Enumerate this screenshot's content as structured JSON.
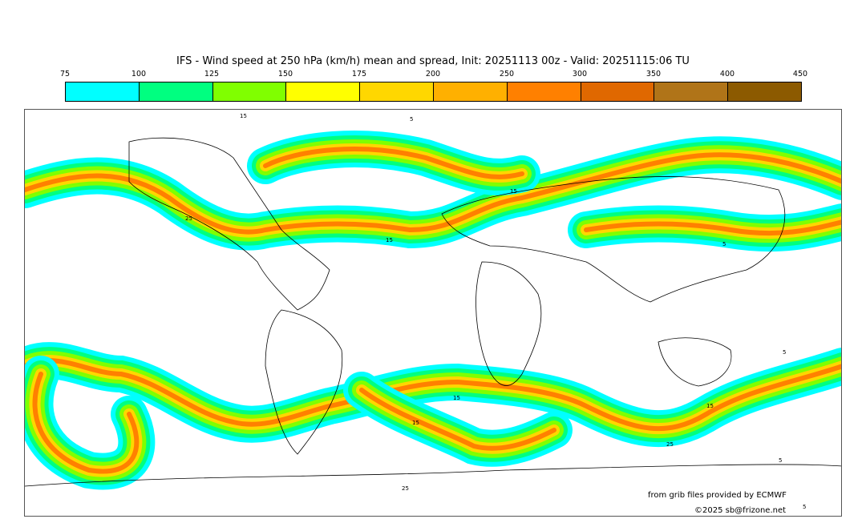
{
  "title": "IFS - Wind speed at 250 hPa (km/h) mean and spread, Init: 20251113 00z - Valid: 20251115:06 TU",
  "legend": {
    "ticks": [
      "75",
      "100",
      "125",
      "150",
      "175",
      "200",
      "250",
      "300",
      "350",
      "400",
      "450"
    ],
    "colors": [
      "#00ffff",
      "#00ff80",
      "#80ff00",
      "#ffff00",
      "#ffd700",
      "#ffb000",
      "#ff8000",
      "#e06800",
      "#b07418",
      "#8c5a00"
    ]
  },
  "map": {
    "contour_labels": [
      "15",
      "5",
      "25",
      "15",
      "15",
      "5",
      "25",
      "15",
      "5",
      "15",
      "5",
      "25",
      "15",
      "5"
    ]
  },
  "credits": {
    "source": "from grib files provided by ECMWF",
    "copyright": "©2025 sb@frizone.net"
  }
}
